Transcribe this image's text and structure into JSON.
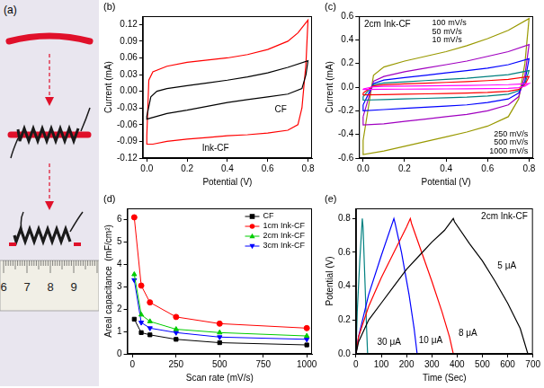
{
  "photo": {
    "label": "(a)",
    "ruler_labels": [
      "6",
      "7",
      "8",
      "9"
    ]
  },
  "chart_data": [
    {
      "type": "line",
      "label": "(b)",
      "x_label": "Potential (V)",
      "y_label": "Current (mA)",
      "grid": false,
      "xlim": [
        -0.02,
        0.82
      ],
      "xticks": [
        {
          "value": 0,
          "label": "0.0"
        },
        0.2,
        0.4,
        0.6,
        0.8
      ],
      "ylim": [
        -0.12,
        0.135
      ],
      "yticks": [
        -0.12,
        -0.09,
        -0.06,
        -0.03,
        {
          "value": 0,
          "label": "0.00"
        },
        0.03,
        0.06,
        0.09,
        0.12
      ],
      "series": [
        {
          "name": "CF",
          "color": "#000000",
          "x": [
            0,
            0.02,
            0.05,
            0.1,
            0.2,
            0.3,
            0.4,
            0.5,
            0.6,
            0.7,
            0.8,
            0.79,
            0.77,
            0.7,
            0.6,
            0.5,
            0.4,
            0.3,
            0.2,
            0.1,
            0,
            0
          ],
          "values": [
            -0.045,
            -0.01,
            0,
            0.005,
            0.01,
            0.015,
            0.02,
            0.026,
            0.033,
            0.043,
            0.055,
            0.03,
            0.005,
            -0.005,
            -0.01,
            -0.015,
            -0.02,
            -0.027,
            -0.034,
            -0.04,
            -0.05,
            -0.045
          ]
        },
        {
          "name": "Ink-CF",
          "color": "#ff0000",
          "x": [
            0,
            0.01,
            0.03,
            0.1,
            0.2,
            0.3,
            0.4,
            0.5,
            0.6,
            0.7,
            0.75,
            0.8,
            0.79,
            0.77,
            0.75,
            0.7,
            0.6,
            0.5,
            0.4,
            0.3,
            0.2,
            0.1,
            0.03,
            0,
            0
          ],
          "values": [
            -0.08,
            0.02,
            0.035,
            0.045,
            0.052,
            0.056,
            0.06,
            0.066,
            0.075,
            0.09,
            0.105,
            0.128,
            0.05,
            -0.03,
            -0.06,
            -0.07,
            -0.075,
            -0.078,
            -0.08,
            -0.083,
            -0.086,
            -0.09,
            -0.095,
            -0.095,
            -0.08
          ]
        }
      ]
    },
    {
      "type": "line",
      "label": "(c)",
      "x_label": "Potential (V)",
      "y_label": "Current (mA)",
      "annotations": [
        "2cm Ink-CF"
      ],
      "grid": false,
      "xlim": [
        -0.02,
        0.82
      ],
      "xticks": [
        {
          "value": 0,
          "label": "0.0"
        },
        0.2,
        0.4,
        0.6,
        0.8
      ],
      "ylim": [
        -0.6,
        0.6
      ],
      "yticks": [
        -0.6,
        -0.4,
        -0.2,
        {
          "value": 0,
          "label": "0.0"
        },
        0.2,
        0.4,
        0.6
      ],
      "series": [
        {
          "name": "10 mV/s",
          "color": "#ff00ff",
          "x": [
            0,
            0.05,
            0.1,
            0.2,
            0.3,
            0.4,
            0.5,
            0.6,
            0.7,
            0.8,
            0.78,
            0.75,
            0.7,
            0.6,
            0.5,
            0.4,
            0.3,
            0.2,
            0.1,
            0,
            0
          ],
          "values": [
            -0.015,
            0.003,
            0.006,
            0.008,
            0.01,
            0.012,
            0.014,
            0.017,
            0.021,
            0.03,
            0.008,
            -0.005,
            -0.01,
            -0.012,
            -0.014,
            -0.015,
            -0.016,
            -0.017,
            -0.018,
            -0.02,
            -0.015
          ]
        },
        {
          "name": "50 mV/s",
          "color": "#ff0000",
          "x": [
            0,
            0.05,
            0.1,
            0.2,
            0.3,
            0.4,
            0.5,
            0.6,
            0.7,
            0.8,
            0.78,
            0.75,
            0.7,
            0.6,
            0.5,
            0.4,
            0.3,
            0.2,
            0.1,
            0,
            0
          ],
          "values": [
            -0.05,
            0.01,
            0.02,
            0.027,
            0.033,
            0.04,
            0.047,
            0.055,
            0.066,
            0.09,
            0.02,
            -0.02,
            -0.035,
            -0.045,
            -0.05,
            -0.054,
            -0.057,
            -0.06,
            -0.063,
            -0.066,
            -0.05
          ]
        },
        {
          "name": "100 mV/s",
          "color": "#008080",
          "x": [
            0,
            0.05,
            0.1,
            0.2,
            0.3,
            0.4,
            0.5,
            0.6,
            0.7,
            0.8,
            0.78,
            0.75,
            0.7,
            0.6,
            0.5,
            0.4,
            0.3,
            0.2,
            0.1,
            0,
            0
          ],
          "values": [
            -0.08,
            0.02,
            0.035,
            0.045,
            0.055,
            0.065,
            0.075,
            0.09,
            0.105,
            0.14,
            0.03,
            -0.03,
            -0.06,
            -0.075,
            -0.085,
            -0.09,
            -0.095,
            -0.1,
            -0.105,
            -0.11,
            -0.08
          ]
        },
        {
          "name": "250 mV/s",
          "color": "#0000ff",
          "x": [
            0,
            0.05,
            0.1,
            0.2,
            0.3,
            0.4,
            0.5,
            0.6,
            0.7,
            0.8,
            0.78,
            0.75,
            0.7,
            0.6,
            0.5,
            0.4,
            0.3,
            0.2,
            0.1,
            0,
            0
          ],
          "values": [
            -0.15,
            0.03,
            0.06,
            0.08,
            0.1,
            0.12,
            0.14,
            0.16,
            0.19,
            0.24,
            0.05,
            -0.05,
            -0.1,
            -0.13,
            -0.15,
            -0.16,
            -0.17,
            -0.18,
            -0.19,
            -0.2,
            -0.15
          ]
        },
        {
          "name": "500 mV/s",
          "color": "#a000c0",
          "x": [
            0,
            0.05,
            0.1,
            0.2,
            0.3,
            0.4,
            0.5,
            0.6,
            0.7,
            0.8,
            0.78,
            0.75,
            0.7,
            0.6,
            0.5,
            0.4,
            0.3,
            0.2,
            0.1,
            0,
            0
          ],
          "values": [
            -0.25,
            0.05,
            0.09,
            0.13,
            0.16,
            0.19,
            0.22,
            0.26,
            0.3,
            0.36,
            0.1,
            -0.08,
            -0.15,
            -0.2,
            -0.23,
            -0.25,
            -0.27,
            -0.29,
            -0.31,
            -0.32,
            -0.25
          ]
        },
        {
          "name": "1000 mV/s",
          "color": "#999900",
          "x": [
            0,
            0.05,
            0.1,
            0.2,
            0.3,
            0.4,
            0.5,
            0.6,
            0.7,
            0.8,
            0.78,
            0.75,
            0.7,
            0.6,
            0.5,
            0.4,
            0.3,
            0.2,
            0.1,
            0,
            0
          ],
          "values": [
            -0.45,
            0.1,
            0.17,
            0.22,
            0.26,
            0.3,
            0.35,
            0.41,
            0.48,
            0.58,
            0.2,
            -0.1,
            -0.25,
            -0.33,
            -0.38,
            -0.42,
            -0.46,
            -0.5,
            -0.54,
            -0.57,
            -0.45
          ]
        }
      ]
    },
    {
      "type": "line",
      "label": "(d)",
      "x_label": "Scan rate (mV/s)",
      "y_label": "Areal capacitance  (mF/cm²)",
      "legend": "top-right",
      "grid": false,
      "xlim": [
        -30,
        1030
      ],
      "xticks": [
        0,
        250,
        500,
        750,
        1000
      ],
      "ylim": [
        0,
        6.5
      ],
      "yticks": [
        0,
        1,
        2,
        3,
        4,
        5,
        6
      ],
      "series": [
        {
          "name": "CF",
          "color": "#000000",
          "marker": "square",
          "x": [
            10,
            50,
            100,
            250,
            500,
            1000
          ],
          "values": [
            1.55,
            0.95,
            0.85,
            0.65,
            0.5,
            0.4
          ]
        },
        {
          "name": "1cm Ink-CF",
          "color": "#ff0000",
          "marker": "circle",
          "x": [
            10,
            50,
            100,
            250,
            500,
            1000
          ],
          "values": [
            6.1,
            3.05,
            2.3,
            1.65,
            1.35,
            1.15
          ]
        },
        {
          "name": "2cm Ink-CF",
          "color": "#00cc00",
          "marker": "triangle",
          "x": [
            10,
            50,
            100,
            250,
            500,
            1000
          ],
          "values": [
            3.55,
            1.75,
            1.45,
            1.1,
            0.95,
            0.8
          ]
        },
        {
          "name": "3cm Ink-CF",
          "color": "#0000ff",
          "marker": "triangle-down",
          "x": [
            10,
            50,
            100,
            250,
            500,
            1000
          ],
          "values": [
            3.3,
            1.4,
            1.15,
            0.95,
            0.75,
            0.65
          ]
        }
      ]
    },
    {
      "type": "line",
      "label": "(e)",
      "x_label": "Time (Sec)",
      "y_label": "Potential (V)",
      "annotations": [
        "2cm Ink-CF"
      ],
      "grid": false,
      "xlim": [
        0,
        700
      ],
      "xticks": [
        0,
        100,
        200,
        300,
        400,
        500,
        600,
        700
      ],
      "ylim": [
        0,
        0.86
      ],
      "yticks": [
        {
          "value": 0,
          "label": "0.0"
        },
        0.2,
        0.4,
        0.6,
        0.8
      ],
      "series": [
        {
          "name": "5 μA",
          "color": "#000000",
          "x": [
            0,
            10,
            50,
            100,
            150,
            200,
            250,
            300,
            350,
            385,
            390,
            450,
            500,
            550,
            600,
            650,
            680
          ],
          "values": [
            0,
            0.07,
            0.2,
            0.3,
            0.4,
            0.5,
            0.58,
            0.66,
            0.73,
            0.8,
            0.78,
            0.65,
            0.55,
            0.43,
            0.3,
            0.15,
            0
          ]
        },
        {
          "name": "8 μA",
          "color": "#ff0000",
          "x": [
            0,
            10,
            50,
            100,
            150,
            200,
            215,
            220,
            260,
            300,
            340,
            370,
            385
          ],
          "values": [
            0,
            0.1,
            0.28,
            0.45,
            0.6,
            0.75,
            0.8,
            0.77,
            0.6,
            0.43,
            0.25,
            0.1,
            0
          ]
        },
        {
          "name": "10 μA",
          "color": "#0000ff",
          "x": [
            0,
            10,
            50,
            100,
            150,
            155,
            180,
            210,
            230,
            242
          ],
          "values": [
            0,
            0.1,
            0.35,
            0.58,
            0.8,
            0.77,
            0.6,
            0.35,
            0.15,
            0
          ]
        },
        {
          "name": "30 μA",
          "color": "#008080",
          "x": [
            0,
            5,
            15,
            25,
            28,
            35,
            42,
            46
          ],
          "values": [
            0,
            0.25,
            0.55,
            0.8,
            0.75,
            0.45,
            0.15,
            0
          ]
        }
      ]
    }
  ]
}
